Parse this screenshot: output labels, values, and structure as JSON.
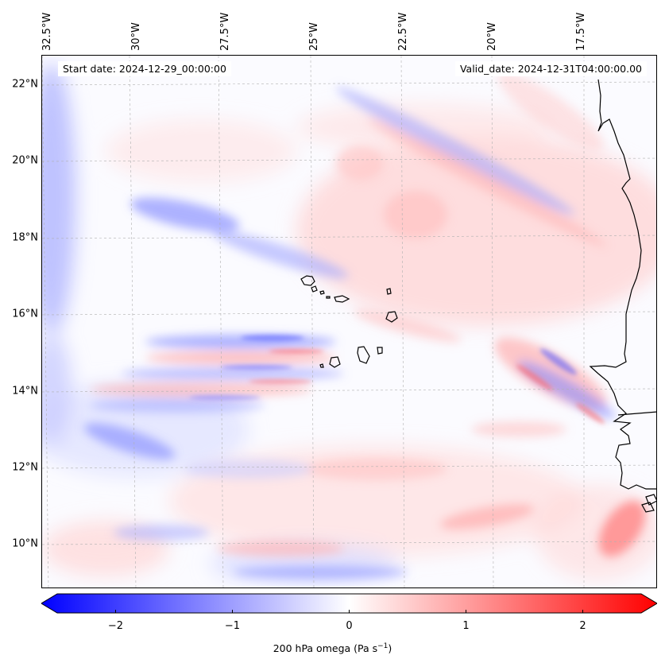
{
  "header": {
    "start_date": "Start date: 2024-12-29_00:00:00",
    "valid_date": "Valid_date: 2024-12-31T04:00:00.00"
  },
  "axes": {
    "latitudes": [
      {
        "label": "22°N",
        "value": 22
      },
      {
        "label": "20°N",
        "value": 20
      },
      {
        "label": "18°N",
        "value": 18
      },
      {
        "label": "16°N",
        "value": 16
      },
      {
        "label": "14°N",
        "value": 14
      },
      {
        "label": "12°N",
        "value": 12
      },
      {
        "label": "10°N",
        "value": 10
      }
    ],
    "longitudes": [
      {
        "label": "32.5°W",
        "value": -32.5
      },
      {
        "label": "30°W",
        "value": -30
      },
      {
        "label": "27.5°W",
        "value": -27.5
      },
      {
        "label": "25°W",
        "value": -25
      },
      {
        "label": "22.5°W",
        "value": -22.5
      },
      {
        "label": "20°W",
        "value": -20
      },
      {
        "label": "17.5°W",
        "value": -17.5
      }
    ]
  },
  "colorbar": {
    "title": "200 hPa omega (Pa s",
    "title_sup": "−1",
    "title_end": ")",
    "ticks": [
      {
        "label": "−2",
        "value": -2
      },
      {
        "label": "−1",
        "value": -1
      },
      {
        "label": "0",
        "value": 0
      },
      {
        "label": "1",
        "value": 1
      },
      {
        "label": "2",
        "value": 2
      }
    ],
    "vmin": -2.5,
    "vmax": 2.5,
    "color_min": "#0000ff",
    "color_mid": "#ffffff",
    "color_max": "#ff0000"
  },
  "colors": {
    "coastline": "#000000",
    "gridline": "#b0b0b0",
    "blue_field": "#5a64ff",
    "red_field": "#ff6a6a"
  }
}
